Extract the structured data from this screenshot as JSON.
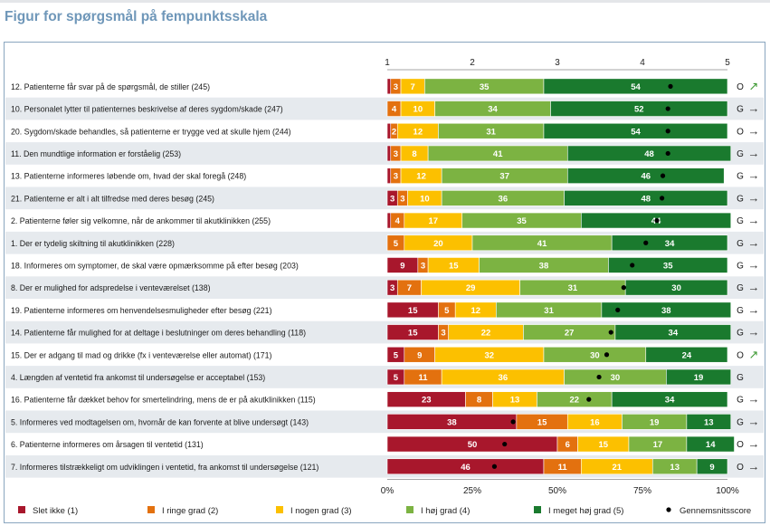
{
  "title": "Figur for spørgsmål på fempunktsskala",
  "colors": {
    "band": "#e6eaee",
    "frame": "#8aa6bf",
    "title": "#6f97b9",
    "arrow_up": "#3f9a35"
  },
  "chart_data": {
    "type": "bar",
    "stacked": true,
    "orientation": "horizontal",
    "top_axis": {
      "ticks": [
        "1",
        "2",
        "3",
        "4",
        "5"
      ],
      "range": [
        1,
        5
      ]
    },
    "bottom_axis": {
      "ticks": [
        "0%",
        "25%",
        "50%",
        "75%",
        "100%"
      ],
      "range": [
        0,
        100
      ]
    },
    "legend": {
      "position": "bottom",
      "items": [
        {
          "label": "Slet ikke (1)",
          "color": "#a8172c"
        },
        {
          "label": "I ringe grad (2)",
          "color": "#e3710f"
        },
        {
          "label": "I nogen grad (3)",
          "color": "#fcc000"
        },
        {
          "label": "I høj grad (4)",
          "color": "#7cb342"
        },
        {
          "label": "I meget høj grad (5)",
          "color": "#1a7a2e"
        },
        {
          "label": "Gennemsnitsscore",
          "marker": "dot",
          "color": "#000000"
        }
      ]
    },
    "rows": [
      {
        "label": "12. Patienterne får svar på de spørgsmål, de stiller (245)",
        "values": [
          1,
          3,
          7,
          35,
          54
        ],
        "mean": 4.33,
        "grade": "O",
        "trend": "up"
      },
      {
        "label": "10. Personalet lytter til patienternes beskrivelse af deres sygdom/skade (247)",
        "values": [
          0,
          4,
          10,
          34,
          52
        ],
        "mean": 4.3,
        "grade": "G",
        "trend": "flat"
      },
      {
        "label": "20. Sygdom/skade behandles, så patienterne er trygge ved at skulle hjem (244)",
        "values": [
          1,
          2,
          12,
          31,
          54
        ],
        "mean": 4.3,
        "grade": "O",
        "trend": "flat"
      },
      {
        "label": "11. Den mundtlige information er forståelig (253)",
        "values": [
          1,
          3,
          8,
          41,
          48
        ],
        "mean": 4.3,
        "grade": "G",
        "trend": "flat"
      },
      {
        "label": "13. Patienterne informeres løbende om, hvad der skal foregå (248)",
        "values": [
          1,
          3,
          12,
          37,
          46
        ],
        "mean": 4.24,
        "grade": "G",
        "trend": "flat"
      },
      {
        "label": "21. Patienterne er alt i alt tilfredse med deres besøg (245)",
        "values": [
          3,
          3,
          10,
          36,
          48
        ],
        "mean": 4.23,
        "grade": "G",
        "trend": "flat"
      },
      {
        "label": "2. Patienterne føler sig velkomne, når de ankommer til akutklinikken (255)",
        "values": [
          1,
          4,
          17,
          35,
          44
        ],
        "mean": 4.17,
        "grade": "G",
        "trend": "flat"
      },
      {
        "label": "1. Der er tydelig skiltning til akutklinikken (228)",
        "values": [
          0,
          5,
          20,
          41,
          34
        ],
        "mean": 4.04,
        "grade": "G",
        "trend": "flat"
      },
      {
        "label": "18. Informeres om symptomer, de skal være opmærksomme på efter besøg (203)",
        "values": [
          9,
          3,
          15,
          38,
          35
        ],
        "mean": 3.88,
        "grade": "G",
        "trend": "flat"
      },
      {
        "label": "8. Der er mulighed for adspredelse i venteværelset (138)",
        "values": [
          3,
          7,
          29,
          31,
          30
        ],
        "mean": 3.78,
        "grade": "G",
        "trend": "flat"
      },
      {
        "label": "19. Patienterne informeres om henvendelsesmuligheder efter besøg (221)",
        "values": [
          15,
          5,
          12,
          31,
          38
        ],
        "mean": 3.71,
        "grade": "G",
        "trend": "flat"
      },
      {
        "label": "14. Patienterne får mulighed for at deltage i beslutninger om deres behandling (118)",
        "values": [
          15,
          3,
          22,
          27,
          34
        ],
        "mean": 3.63,
        "grade": "G",
        "trend": "flat"
      },
      {
        "label": "15. Der er adgang til mad og drikke (fx i venteværelse eller automat) (171)",
        "values": [
          5,
          9,
          32,
          30,
          24
        ],
        "mean": 3.58,
        "grade": "O",
        "trend": "up"
      },
      {
        "label": "4. Længden af ventetid fra ankomst til undersøgelse er acceptabel (153)",
        "values": [
          5,
          11,
          36,
          30,
          19
        ],
        "mean": 3.49,
        "grade": "G",
        "trend": "none"
      },
      {
        "label": "16. Patienterne får dækket behov for smertelindring, mens de er på akutklinikken (115)",
        "values": [
          23,
          8,
          13,
          22,
          34
        ],
        "mean": 3.37,
        "grade": "G",
        "trend": "flat"
      },
      {
        "label": "5. Informeres ved modtagelsen om, hvornår de kan forvente at blive undersøgt (143)",
        "values": [
          38,
          15,
          16,
          19,
          13
        ],
        "mean": 2.48,
        "grade": "G",
        "trend": "flat"
      },
      {
        "label": "6. Patienterne informeres om årsagen til ventetid (131)",
        "values": [
          50,
          6,
          15,
          17,
          14
        ],
        "mean": 2.38,
        "grade": "O",
        "trend": "flat"
      },
      {
        "label": "7.  Informeres tilstrækkeligt om udviklingen i ventetid, fra ankomst til undersøgelse (121)",
        "values": [
          46,
          11,
          21,
          13,
          9
        ],
        "mean": 2.26,
        "grade": "O",
        "trend": "flat"
      }
    ]
  }
}
